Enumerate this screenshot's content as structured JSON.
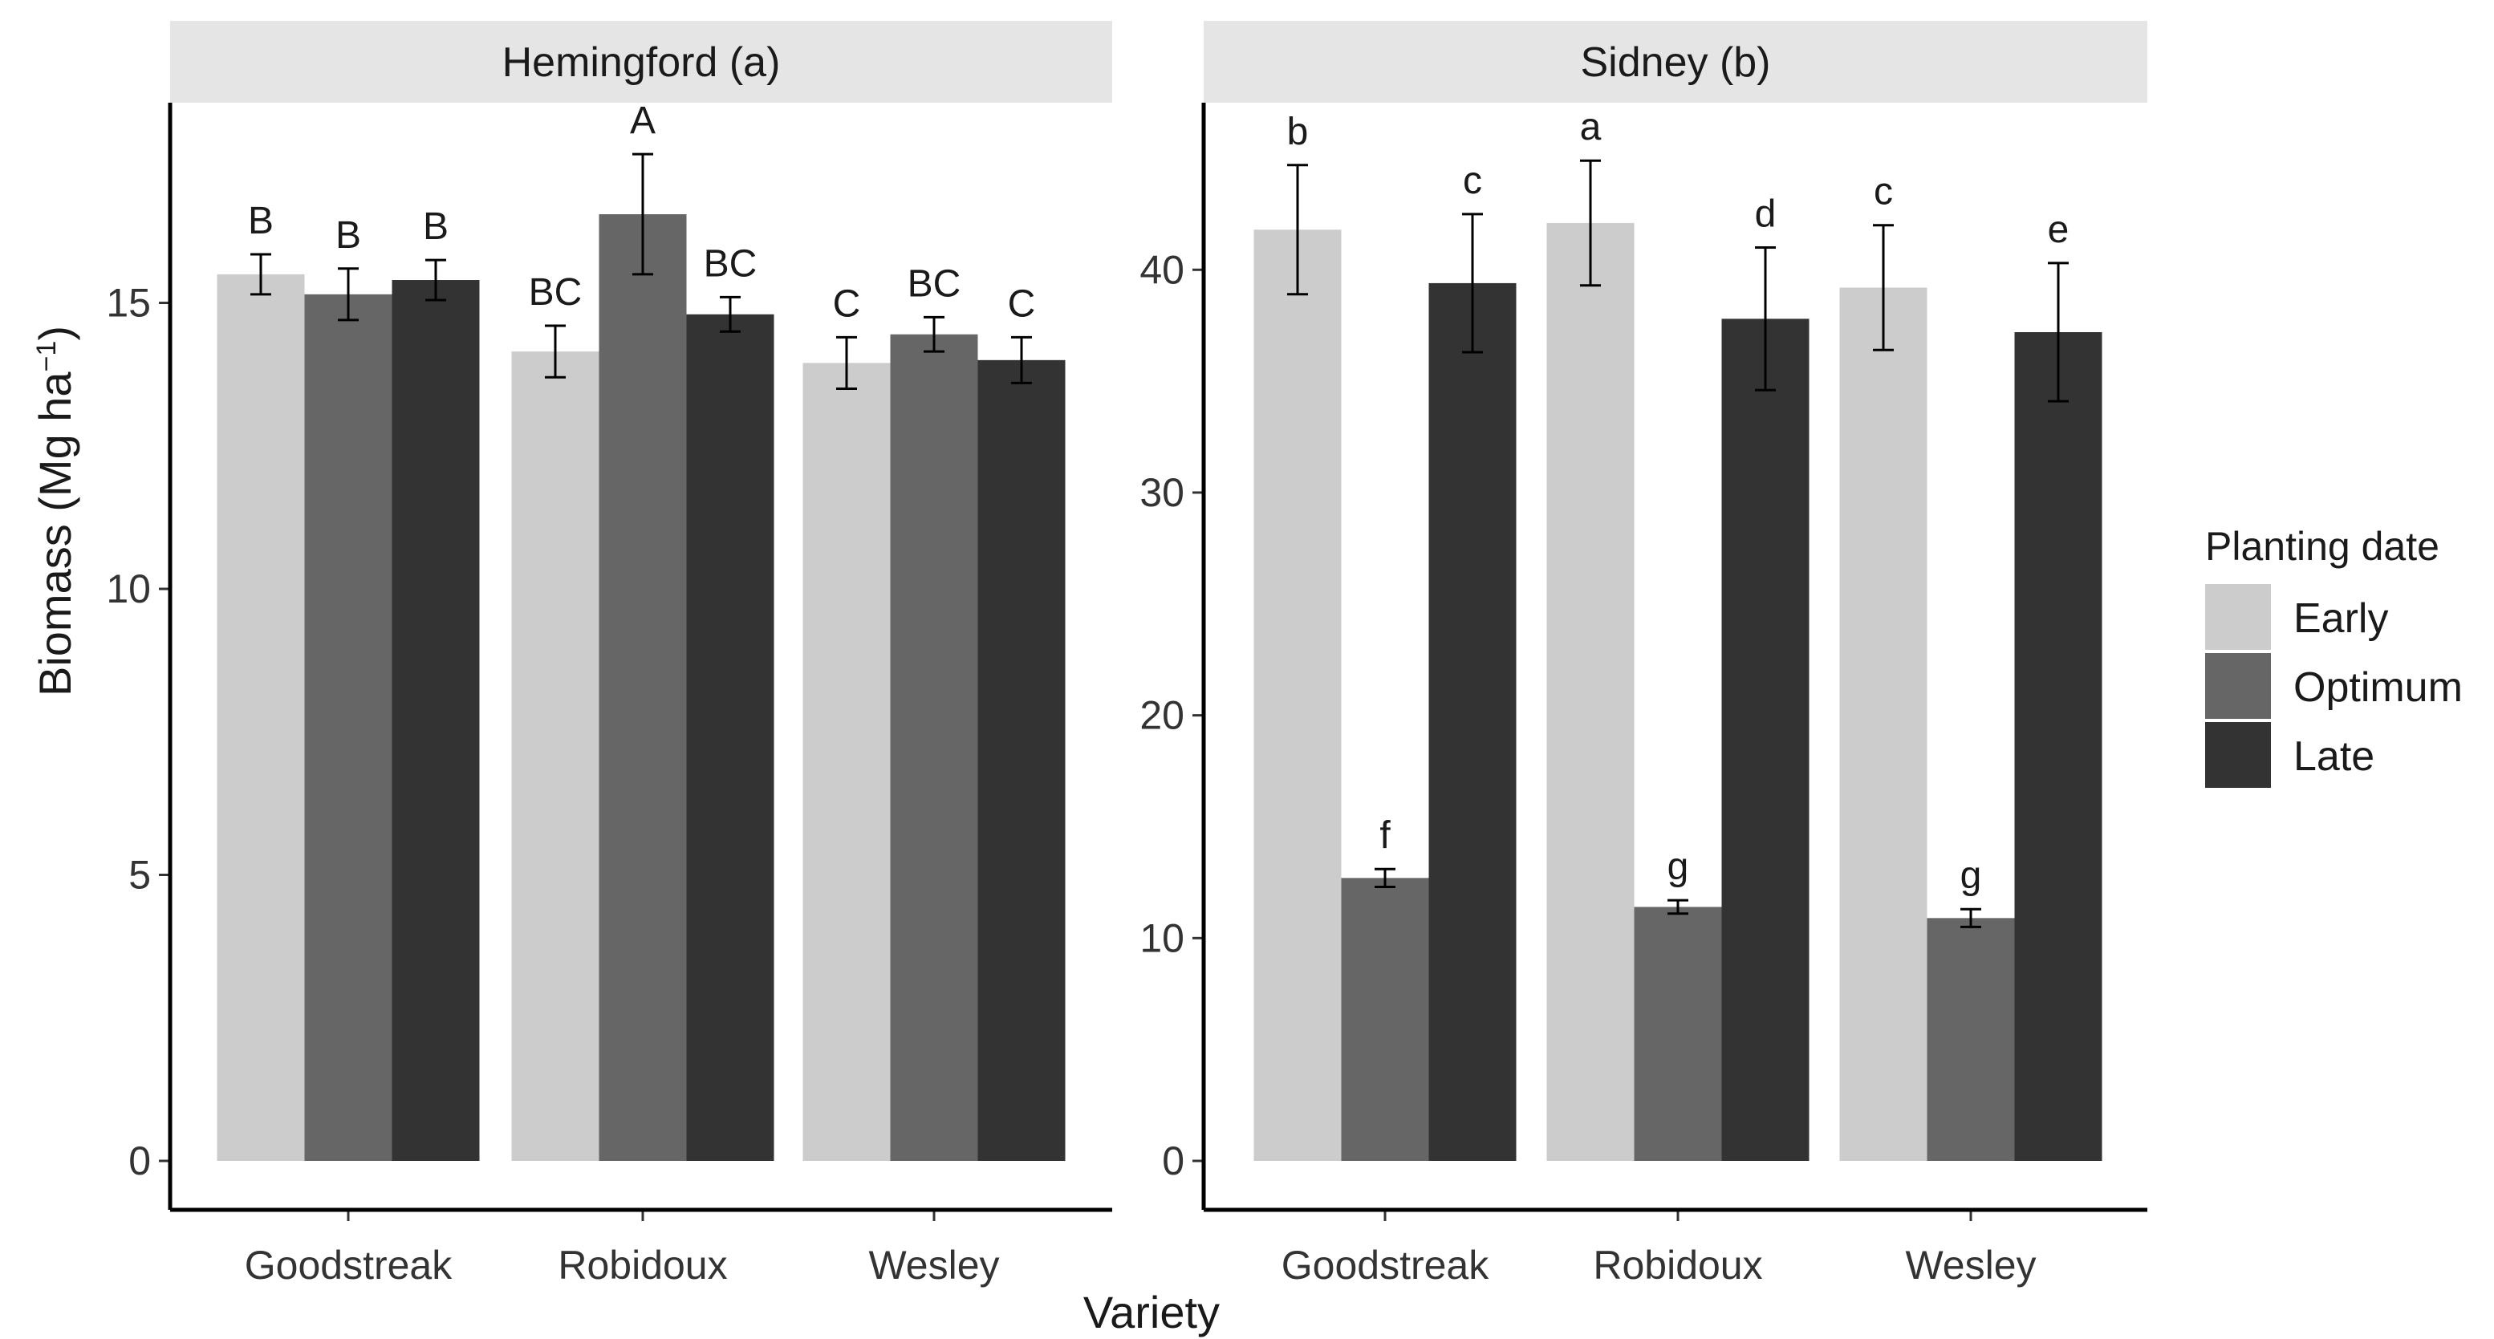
{
  "chart_data": {
    "type": "bar",
    "xlabel": "Variety",
    "ylabel_main": "Biomass  (Mg ha",
    "ylabel_sup": "−1",
    "ylabel_close": ")",
    "legend": {
      "title": "Planting date",
      "placement": "right",
      "entries": [
        {
          "name": "Early",
          "color": "#cccccc"
        },
        {
          "name": "Optimum",
          "color": "#666666"
        },
        {
          "name": "Late",
          "color": "#333333"
        }
      ]
    },
    "strip_color": "#e5e5e5",
    "grid": false,
    "panels": [
      {
        "title": "Hemingford (a)",
        "ylim": [
          0,
          18.5
        ],
        "yticks": [
          0,
          5,
          10,
          15
        ],
        "categories": [
          "Goodstreak",
          "Robidoux",
          "Wesley"
        ],
        "series": [
          {
            "name": "Early",
            "values": [
              15.5,
              14.15,
              13.95
            ],
            "errors": [
              0.35,
              0.45,
              0.45
            ],
            "letters": [
              "B",
              "BC",
              "C"
            ]
          },
          {
            "name": "Optimum",
            "values": [
              15.15,
              16.55,
              14.45
            ],
            "errors": [
              0.45,
              1.05,
              0.3
            ],
            "letters": [
              "B",
              "A",
              "BC"
            ]
          },
          {
            "name": "Late",
            "values": [
              15.4,
              14.8,
              14.0
            ],
            "errors": [
              0.35,
              0.3,
              0.4
            ],
            "letters": [
              "B",
              "BC",
              "C"
            ]
          }
        ]
      },
      {
        "title": "Sidney (b)",
        "ylim": [
          0,
          47.5
        ],
        "yticks": [
          0,
          10,
          20,
          30,
          40
        ],
        "categories": [
          "Goodstreak",
          "Robidoux",
          "Wesley"
        ],
        "series": [
          {
            "name": "Early",
            "values": [
              41.8,
              42.1,
              39.2
            ],
            "errors": [
              2.9,
              2.8,
              2.8
            ],
            "letters": [
              "b",
              "a",
              "c"
            ]
          },
          {
            "name": "Optimum",
            "values": [
              12.7,
              11.4,
              10.9
            ],
            "errors": [
              0.4,
              0.3,
              0.4
            ],
            "letters": [
              "f",
              "g",
              "g"
            ]
          },
          {
            "name": "Late",
            "values": [
              39.4,
              37.8,
              37.2
            ],
            "errors": [
              3.1,
              3.2,
              3.1
            ],
            "letters": [
              "c",
              "d",
              "e"
            ]
          }
        ]
      }
    ]
  }
}
